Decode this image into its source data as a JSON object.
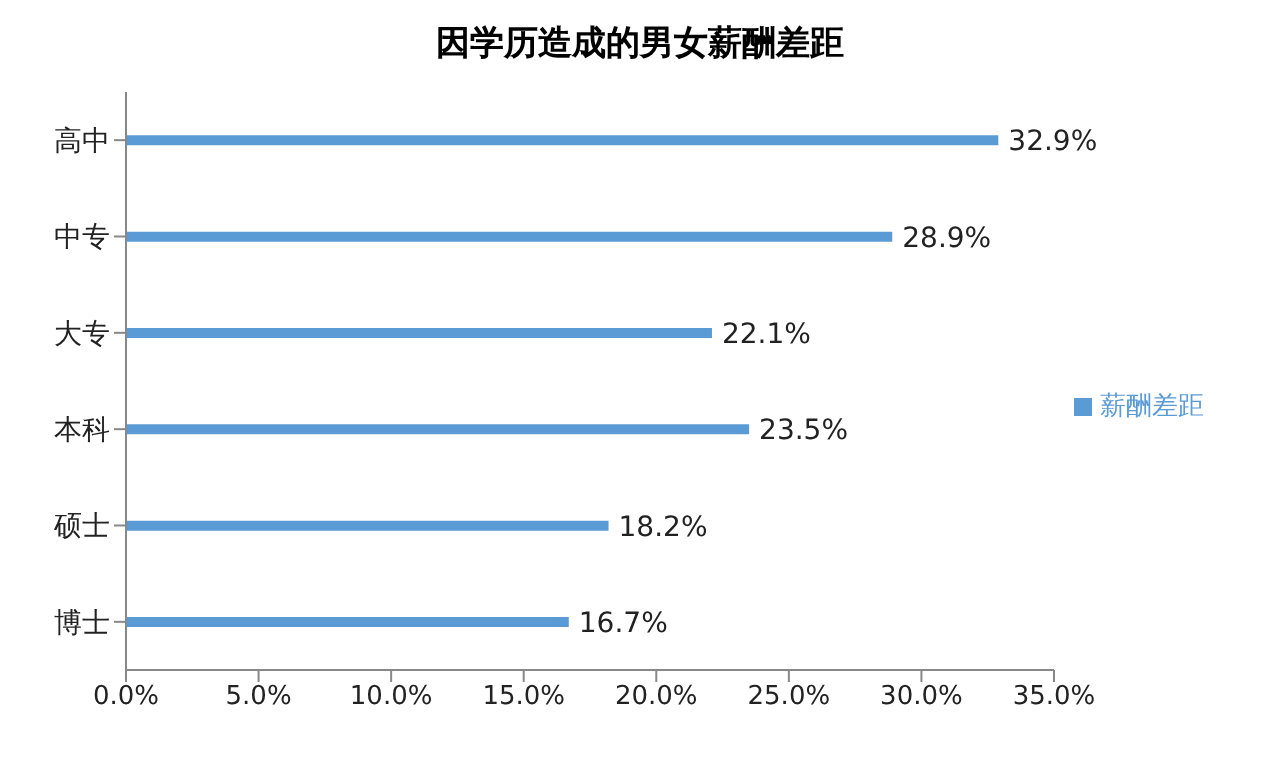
{
  "chart_data": {
    "type": "bar",
    "orientation": "horizontal",
    "title": "因学历造成的男女薪酬差距",
    "categories": [
      "高中",
      "中专",
      "大专",
      "本科",
      "硕士",
      "博士"
    ],
    "series": [
      {
        "name": "薪酬差距",
        "color": "#5b9bd5",
        "values": [
          32.9,
          28.9,
          22.1,
          23.5,
          18.2,
          16.7
        ],
        "value_labels": [
          "32.9%",
          "28.9%",
          "22.1%",
          "23.5%",
          "18.2%",
          "16.7%"
        ]
      }
    ],
    "xlim": [
      0,
      35
    ],
    "xticks": [
      {
        "value": 0,
        "label": "0.0%"
      },
      {
        "value": 5,
        "label": "5.0%"
      },
      {
        "value": 10,
        "label": "10.0%"
      },
      {
        "value": 15,
        "label": "15.0%"
      },
      {
        "value": 20,
        "label": "20.0%"
      },
      {
        "value": 25,
        "label": "25.0%"
      },
      {
        "value": 30,
        "label": "30.0%"
      },
      {
        "value": 35,
        "label": "35.0%"
      }
    ],
    "grid": false,
    "legend": "right"
  }
}
